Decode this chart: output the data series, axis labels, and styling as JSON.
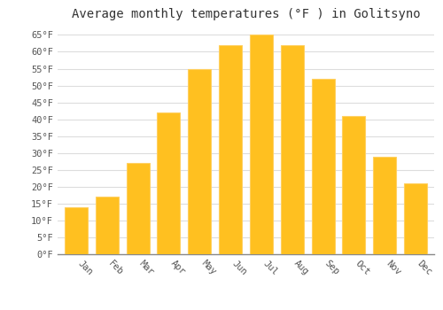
{
  "title": "Average monthly temperatures (°F ) in Golitsyno",
  "months": [
    "Jan",
    "Feb",
    "Mar",
    "Apr",
    "May",
    "Jun",
    "Jul",
    "Aug",
    "Sep",
    "Oct",
    "Nov",
    "Dec"
  ],
  "values": [
    14,
    17,
    27,
    42,
    55,
    62,
    65,
    62,
    52,
    41,
    29,
    21
  ],
  "bar_color": "#FFC020",
  "bar_edge_color": "#FFD060",
  "background_color": "#ffffff",
  "grid_color": "#dddddd",
  "ylim": [
    0,
    68
  ],
  "yticks": [
    0,
    5,
    10,
    15,
    20,
    25,
    30,
    35,
    40,
    45,
    50,
    55,
    60,
    65
  ],
  "ytick_labels": [
    "0°F",
    "5°F",
    "10°F",
    "15°F",
    "20°F",
    "25°F",
    "30°F",
    "35°F",
    "40°F",
    "45°F",
    "50°F",
    "55°F",
    "60°F",
    "65°F"
  ],
  "title_fontsize": 10,
  "tick_fontsize": 7.5,
  "font_family": "monospace",
  "bar_width": 0.75
}
